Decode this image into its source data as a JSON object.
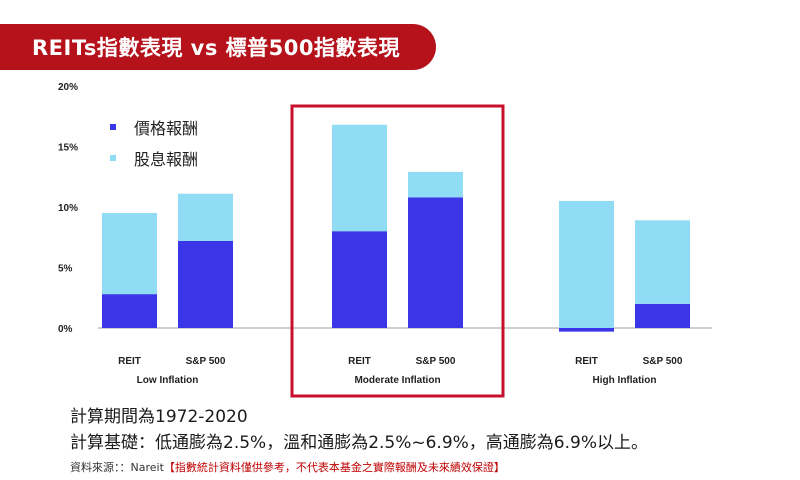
{
  "header": {
    "title": "REITs指數表現 vs 標普500指數表現"
  },
  "colors": {
    "banner": "#b5121b",
    "price_return": "#3a36e8",
    "dividend_return": "#8fdcf4",
    "highlight_box": "#c8102e",
    "axis": "#bfbfbf"
  },
  "chart_data": {
    "type": "bar",
    "stacked": true,
    "title": "",
    "xlabel": "",
    "ylabel": "",
    "ylim": [
      0,
      20
    ],
    "y_ticks": [
      "0%",
      "5%",
      "10%",
      "15%",
      "20%"
    ],
    "y_tick_values": [
      0,
      5,
      10,
      15,
      20
    ],
    "legend_position": "top-left",
    "groups": [
      {
        "name": "Low Inflation",
        "categories": [
          "REIT",
          "S&P 500"
        ],
        "price_return": [
          2.8,
          7.2
        ],
        "dividend_return": [
          6.7,
          3.9
        ]
      },
      {
        "name": "Moderate Inflation",
        "categories": [
          "REIT",
          "S&P 500"
        ],
        "price_return": [
          8.0,
          10.8
        ],
        "dividend_return": [
          8.8,
          2.1
        ],
        "highlighted": true
      },
      {
        "name": "High Inflation",
        "categories": [
          "REIT",
          "S&P 500"
        ],
        "price_return": [
          -0.3,
          2.0
        ],
        "dividend_return": [
          10.5,
          6.9
        ]
      }
    ],
    "series": [
      {
        "name": "價格報酬",
        "key": "price_return"
      },
      {
        "name": "股息報酬",
        "key": "dividend_return"
      }
    ]
  },
  "notes": {
    "period": "計算期間為1972-2020",
    "basis": "計算基礎：低通膨為2.5%，溫和通膨為2.5%~6.9%，高通膨為6.9%以上。"
  },
  "source": {
    "prefix": "資料來源：：Nareit",
    "disclaimer": "【指數統計資料僅供參考，不代表本基金之實際報酬及未來績效保證】"
  }
}
